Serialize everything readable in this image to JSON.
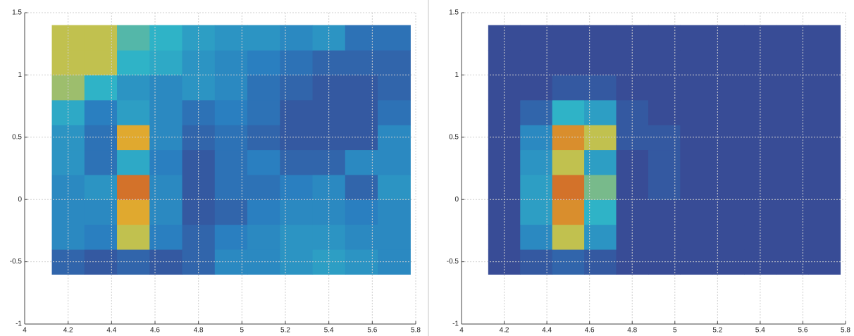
{
  "chart_data": [
    {
      "type": "heatmap",
      "x": [
        4.2,
        4.35,
        4.5,
        4.65,
        4.8,
        4.95,
        5.1,
        5.25,
        5.4,
        5.55,
        5.7
      ],
      "y": [
        -0.5,
        -0.3,
        -0.1,
        0.1,
        0.3,
        0.5,
        0.7,
        0.9,
        1.1,
        1.3
      ],
      "z": [
        [
          0.15,
          0.1,
          0.15,
          0.1,
          0.15,
          0.3,
          0.3,
          0.35,
          0.4,
          0.35,
          0.3
        ],
        [
          0.3,
          0.25,
          0.7,
          0.25,
          0.15,
          0.25,
          0.3,
          0.35,
          0.35,
          0.3,
          0.3
        ],
        [
          0.3,
          0.3,
          0.8,
          0.3,
          0.1,
          0.15,
          0.25,
          0.3,
          0.3,
          0.25,
          0.3
        ],
        [
          0.3,
          0.35,
          0.9,
          0.3,
          0.1,
          0.2,
          0.2,
          0.25,
          0.3,
          0.15,
          0.35
        ],
        [
          0.35,
          0.2,
          0.45,
          0.25,
          0.1,
          0.2,
          0.25,
          0.15,
          0.15,
          0.3,
          0.3
        ],
        [
          0.35,
          0.2,
          0.8,
          0.3,
          0.15,
          0.2,
          0.15,
          0.1,
          0.1,
          0.1,
          0.3
        ],
        [
          0.45,
          0.25,
          0.4,
          0.3,
          0.2,
          0.25,
          0.2,
          0.1,
          0.1,
          0.1,
          0.2
        ],
        [
          0.65,
          0.5,
          0.35,
          0.3,
          0.35,
          0.3,
          0.2,
          0.15,
          0.1,
          0.1,
          0.15
        ],
        [
          0.7,
          0.7,
          0.5,
          0.45,
          0.35,
          0.3,
          0.25,
          0.2,
          0.15,
          0.15,
          0.15
        ],
        [
          0.7,
          0.7,
          0.55,
          0.5,
          0.4,
          0.35,
          0.35,
          0.3,
          0.35,
          0.2,
          0.2
        ]
      ],
      "clim": [
        0,
        1
      ],
      "colormap": [
        "#3b3f8c",
        "#2a7fc0",
        "#2fb3c7",
        "#e6c531",
        "#c63b26"
      ],
      "xlim": [
        4,
        5.8
      ],
      "ylim": [
        -1,
        1.5
      ],
      "xticks": [
        4,
        4.2,
        4.4,
        4.6,
        4.8,
        5,
        5.2,
        5.4,
        5.6,
        5.8
      ],
      "yticks": [
        -1,
        -0.5,
        0,
        0.5,
        1,
        1.5
      ],
      "grid": true
    },
    {
      "type": "heatmap",
      "x": [
        4.2,
        4.35,
        4.5,
        4.65,
        4.8,
        4.95,
        5.1,
        5.25,
        5.4,
        5.55,
        5.7
      ],
      "y": [
        -0.5,
        -0.3,
        -0.1,
        0.1,
        0.3,
        0.5,
        0.7,
        0.9,
        1.1,
        1.3
      ],
      "z": [
        [
          0.05,
          0.1,
          0.15,
          0.1,
          0.05,
          0.05,
          0.05,
          0.05,
          0.05,
          0.05,
          0.05
        ],
        [
          0.05,
          0.3,
          0.7,
          0.35,
          0.05,
          0.05,
          0.05,
          0.05,
          0.05,
          0.05,
          0.05
        ],
        [
          0.05,
          0.4,
          0.85,
          0.5,
          0.05,
          0.05,
          0.05,
          0.05,
          0.05,
          0.05,
          0.05
        ],
        [
          0.05,
          0.4,
          0.9,
          0.6,
          0.05,
          0.1,
          0.05,
          0.05,
          0.05,
          0.05,
          0.05
        ],
        [
          0.05,
          0.35,
          0.7,
          0.4,
          0.05,
          0.1,
          0.05,
          0.05,
          0.05,
          0.05,
          0.05
        ],
        [
          0.05,
          0.3,
          0.85,
          0.7,
          0.1,
          0.1,
          0.05,
          0.05,
          0.05,
          0.05,
          0.05
        ],
        [
          0.05,
          0.15,
          0.5,
          0.4,
          0.1,
          0.05,
          0.05,
          0.05,
          0.05,
          0.05,
          0.05
        ],
        [
          0.05,
          0.05,
          0.1,
          0.1,
          0.05,
          0.05,
          0.05,
          0.05,
          0.05,
          0.05,
          0.05
        ],
        [
          0.05,
          0.05,
          0.05,
          0.05,
          0.05,
          0.05,
          0.05,
          0.05,
          0.05,
          0.05,
          0.05
        ],
        [
          0.05,
          0.05,
          0.05,
          0.05,
          0.05,
          0.05,
          0.05,
          0.05,
          0.05,
          0.05,
          0.05
        ]
      ],
      "clim": [
        0,
        1
      ],
      "colormap": [
        "#3b3f8c",
        "#2a7fc0",
        "#2fb3c7",
        "#e6c531",
        "#c63b26"
      ],
      "xlim": [
        4,
        5.8
      ],
      "ylim": [
        -1,
        1.5
      ],
      "xticks": [
        4,
        4.2,
        4.4,
        4.6,
        4.8,
        5,
        5.2,
        5.4,
        5.6,
        5.8
      ],
      "yticks": [
        -1,
        -0.5,
        0,
        0.5,
        1,
        1.5
      ],
      "grid": true
    }
  ]
}
